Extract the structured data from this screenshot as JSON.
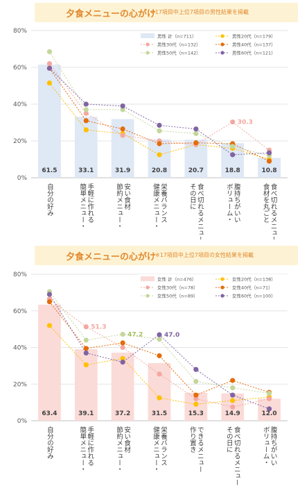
{
  "chart_data": [
    {
      "type": "bar",
      "title": "夕食メニューの心がけ",
      "subtitle": "※17項目中上位7項目の男性結果を掲載",
      "yticks": [
        "0%",
        "20%",
        "40%",
        "60%",
        "80%"
      ],
      "ylim": [
        0,
        80
      ],
      "categories": [
        "自分の好み",
        "簡単メニュー・手軽に作れる",
        "節約メニュー・安い食材",
        "健康メニュー・栄養バランス",
        "その日に食べ切れるメニュー",
        "ボリューム・腹持ちがいい",
        "食材を丸ごと食べ切れるメニュー"
      ],
      "bar_series": {
        "name": "男性 計（n=711）",
        "values": [
          61.5,
          33.1,
          31.9,
          20.8,
          20.7,
          18.8,
          10.8
        ],
        "color": "#dfe8f5"
      },
      "line_series": [
        {
          "name": "男性20代（n=179）",
          "values": [
            51.5,
            26,
            24,
            12.5,
            18,
            16,
            10
          ],
          "color": "#ffc000"
        },
        {
          "name": "男性30代（n=132）",
          "values": [
            62,
            35,
            23,
            20,
            18,
            30.3,
            15
          ],
          "color": "#f4a7a0"
        },
        {
          "name": "男性40代（n=137）",
          "values": [
            59.5,
            31,
            26.5,
            18.5,
            19,
            18.5,
            9
          ],
          "color": "#e46c0a"
        },
        {
          "name": "男性50代（n=142）",
          "values": [
            68.5,
            37,
            37,
            25.5,
            24,
            17,
            12
          ],
          "color": "#c4d79b"
        },
        {
          "name": "男性60代（n=121）",
          "values": [
            59.5,
            40,
            39,
            28.5,
            26.5,
            12.5,
            13.5
          ],
          "color": "#8064a2"
        }
      ],
      "annotations": [
        {
          "series": 1,
          "index": 5,
          "text": "30.3",
          "color": "#f4a7a0"
        }
      ],
      "legend": "top-right"
    },
    {
      "type": "bar",
      "title": "夕食メニューの心がけ",
      "subtitle": "※17項目中上位7項目の女性結果を掲載",
      "yticks": [
        "0%",
        "20%",
        "40%",
        "60%",
        "80%"
      ],
      "ylim": [
        0,
        80
      ],
      "categories": [
        "自分の好み",
        "簡単メニュー・手軽に作れる",
        "節約メニュー・安い食材",
        "健康メニュー・栄養バランス",
        "作り置きできるメニュー",
        "その日に食べ切れるメニュー",
        "ボリューム・腹持ちがいい"
      ],
      "bar_series": {
        "name": "女性 計（n=476）",
        "values": [
          63.4,
          39.1,
          37.2,
          31.5,
          15.3,
          14.9,
          12.0
        ],
        "color": "#fadbd8"
      },
      "line_series": [
        {
          "name": "女性20代（n=138）",
          "values": [
            52,
            30.5,
            34,
            12.5,
            9,
            11,
            13
          ],
          "color": "#ffc000"
        },
        {
          "name": "女性30代（n=78）",
          "values": [
            66.5,
            51.3,
            40,
            25.5,
            12,
            7.5,
            12
          ],
          "color": "#f4a7a0"
        },
        {
          "name": "女性40代（n=71）",
          "values": [
            65,
            39.5,
            42.5,
            35.5,
            14,
            22,
            15.5
          ],
          "color": "#e46c0a"
        },
        {
          "name": "女性50代（n=89）",
          "values": [
            70.5,
            44,
            47.2,
            44.5,
            21.5,
            18,
            15
          ],
          "color": "#c4d79b"
        },
        {
          "name": "女性60代（n=100）",
          "values": [
            69,
            37,
            32,
            47.0,
            28,
            14,
            6.5
          ],
          "color": "#8064a2"
        }
      ],
      "annotations": [
        {
          "series": 1,
          "index": 1,
          "text": "51.3",
          "color": "#f4a7a0"
        },
        {
          "series": 3,
          "index": 2,
          "text": "47.2",
          "color": "#a5c05f"
        },
        {
          "series": 4,
          "index": 3,
          "text": "47.0",
          "color": "#8064a2"
        }
      ],
      "legend": "top-right"
    }
  ]
}
